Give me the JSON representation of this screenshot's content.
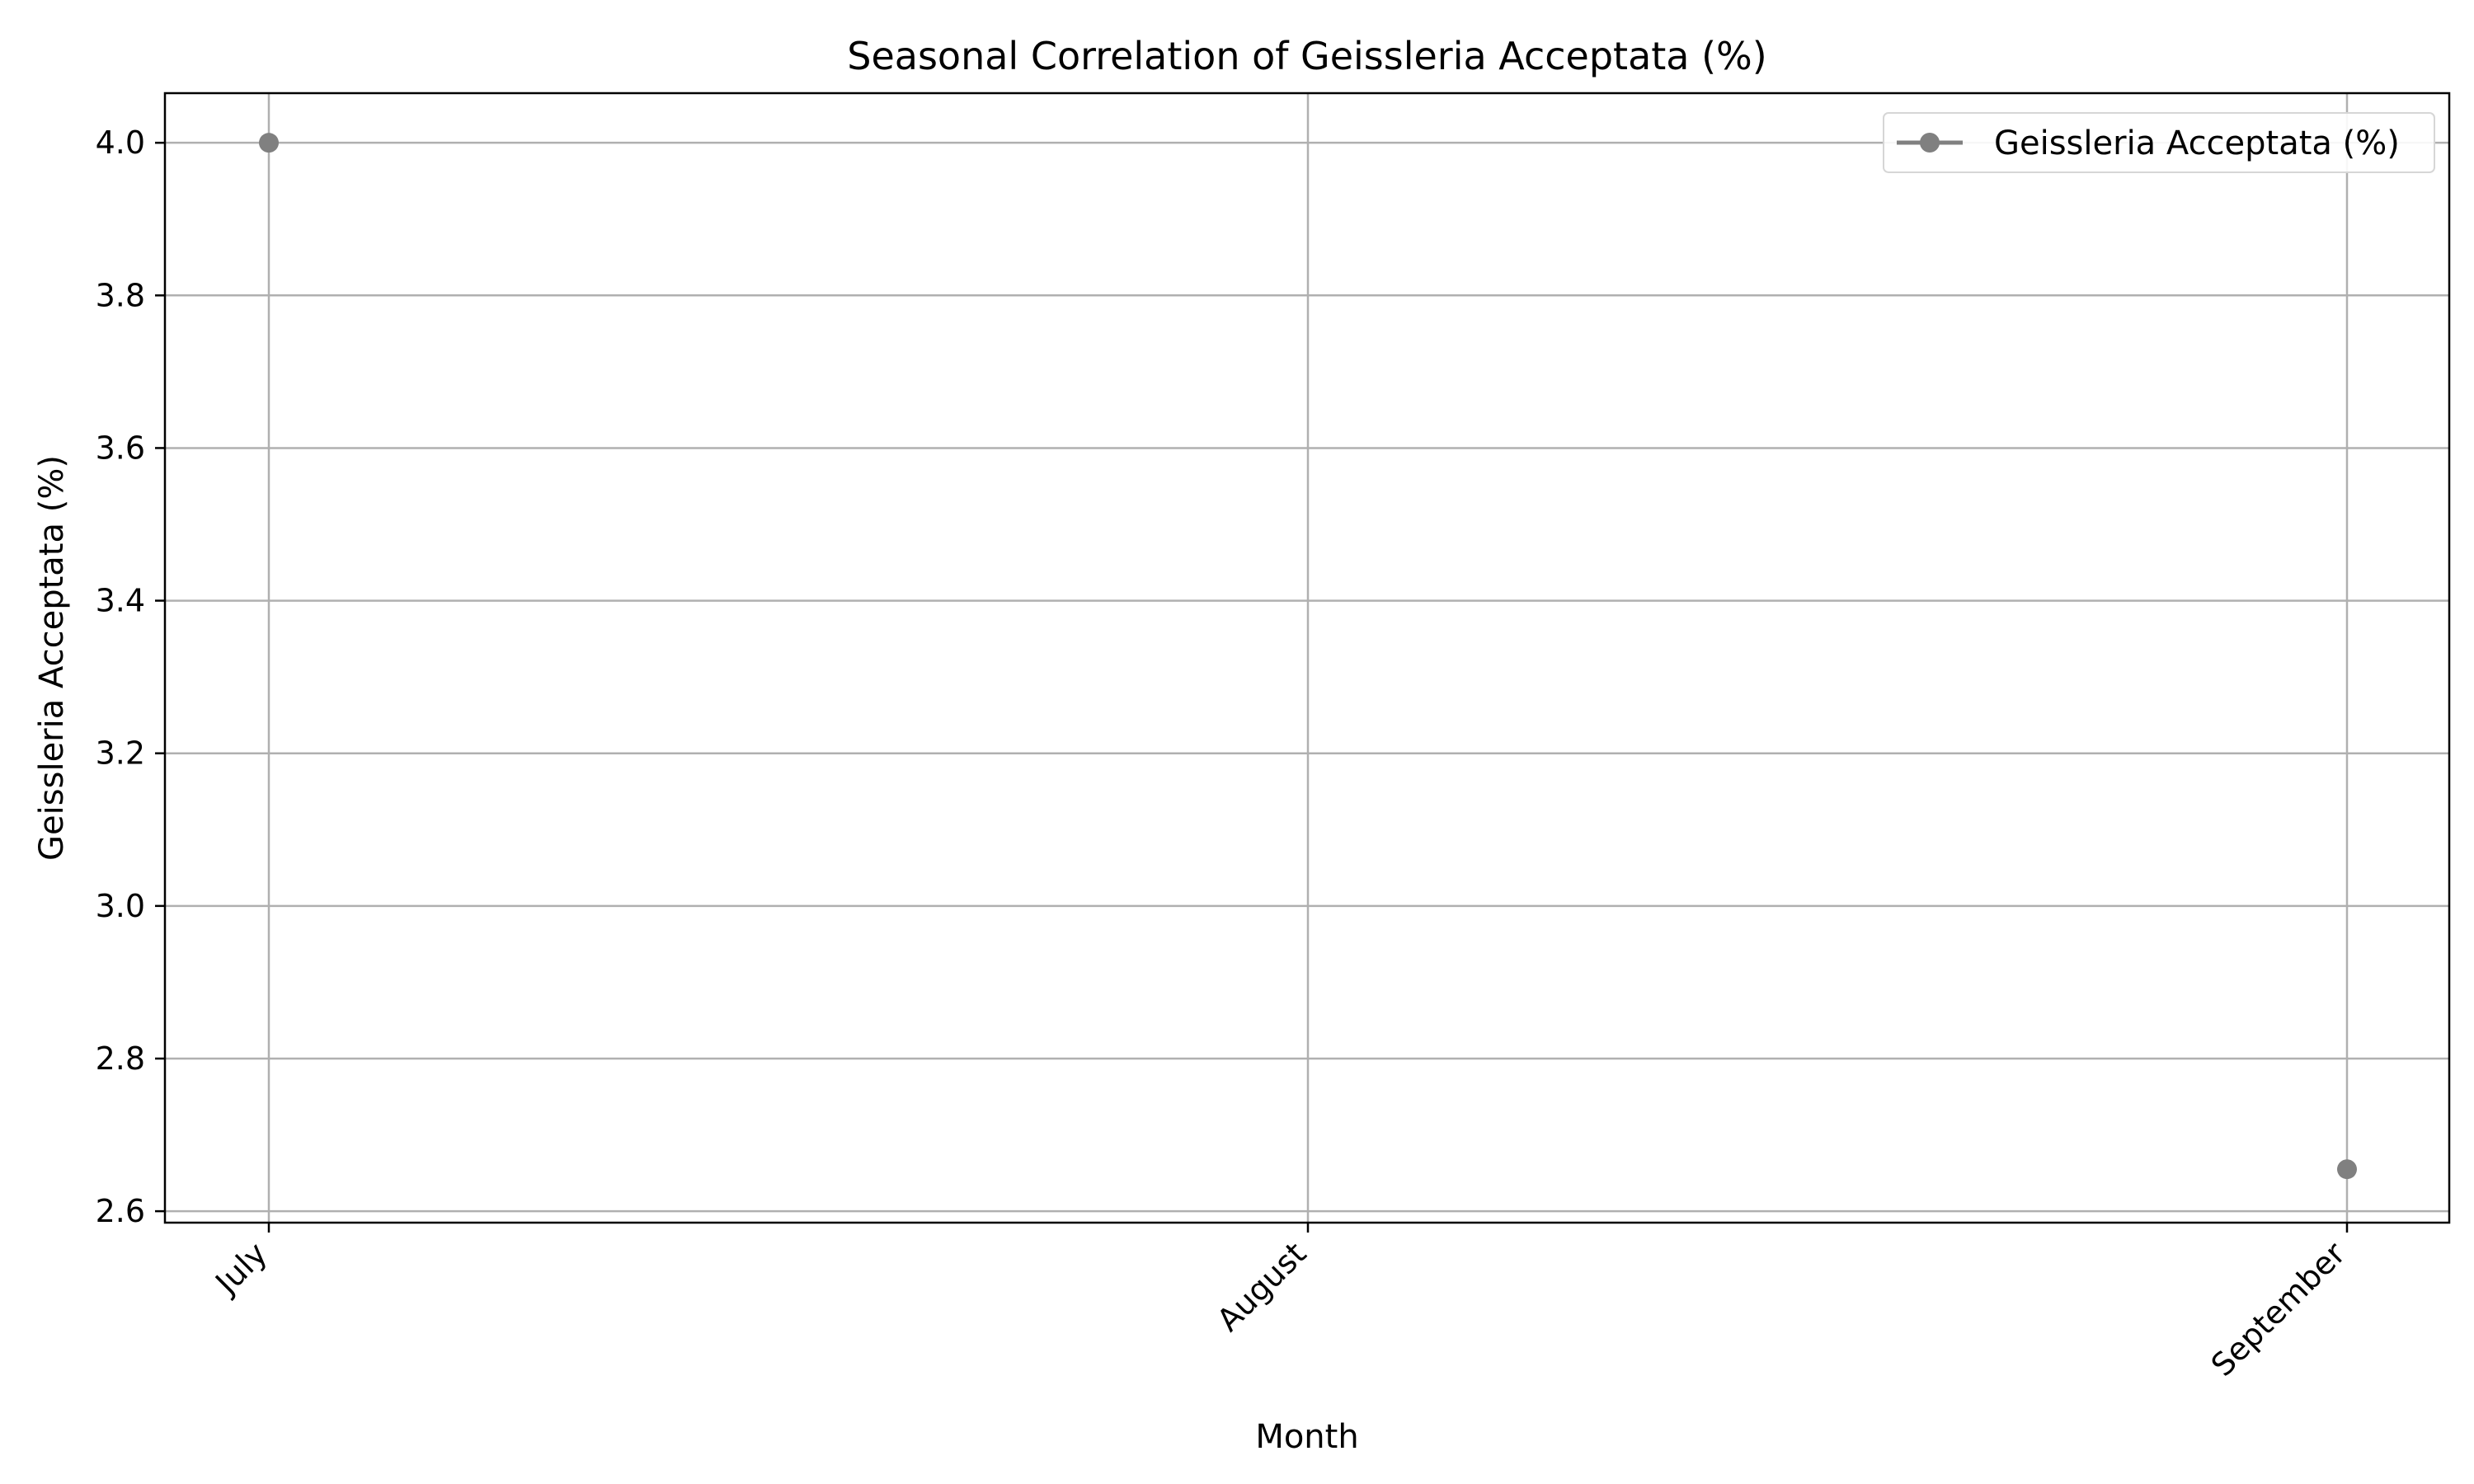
{
  "chart_data": {
    "type": "line",
    "title": "Seasonal Correlation of Geissleria Acceptata (%)",
    "xlabel": "Month",
    "ylabel": "Geissleria Acceptata (%)",
    "categories": [
      "July",
      "August",
      "September"
    ],
    "series": [
      {
        "name": "Geissleria Acceptata (%)",
        "values": [
          4.0,
          null,
          2.655
        ],
        "color": "#808080",
        "marker": "circle"
      }
    ],
    "ylim": [
      2.585,
      4.065
    ],
    "yticks": [
      2.6,
      2.8,
      3.0,
      3.2,
      3.4,
      3.6,
      3.8,
      4.0
    ],
    "ytick_labels": [
      "2.6",
      "2.8",
      "3.0",
      "3.2",
      "3.4",
      "3.6",
      "3.8",
      "4.0"
    ],
    "grid": true,
    "legend_position": "top-right",
    "xtick_rotation": -45
  }
}
